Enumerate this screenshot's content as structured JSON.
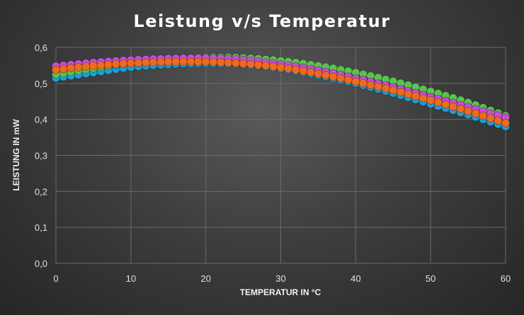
{
  "chart_data": {
    "type": "scatter",
    "title": "Leistung v/s Temperatur",
    "xlabel": "TEMPERATUR IN °C",
    "ylabel": "LEISTUNG IN mW",
    "xlim": [
      0,
      60
    ],
    "ylim": [
      0,
      0.6
    ],
    "x_ticks": [
      "0",
      "10",
      "20",
      "30",
      "40",
      "50",
      "60"
    ],
    "y_ticks": [
      "0,0",
      "0,1",
      "0,2",
      "0,3",
      "0,4",
      "0,5",
      "0,6"
    ],
    "grid": true,
    "legend": "none",
    "series": [
      {
        "color": "#1e9fd6",
        "x": [
          0,
          5,
          10,
          15,
          20,
          25,
          30,
          35,
          40,
          45,
          50,
          55,
          60
        ],
        "values": [
          0.515,
          0.53,
          0.545,
          0.553,
          0.556,
          0.553,
          0.541,
          0.523,
          0.5,
          0.473,
          0.443,
          0.413,
          0.38
        ]
      },
      {
        "color": "#5cc24f",
        "x": [
          0,
          5,
          10,
          15,
          20,
          25,
          30,
          35,
          40,
          45,
          50,
          55,
          60
        ],
        "values": [
          0.525,
          0.542,
          0.558,
          0.567,
          0.572,
          0.571,
          0.563,
          0.549,
          0.53,
          0.506,
          0.478,
          0.447,
          0.41
        ]
      },
      {
        "color": "#c64fd8",
        "x": [
          0,
          5,
          10,
          15,
          20,
          25,
          30,
          35,
          40,
          45,
          50,
          55,
          60
        ],
        "values": [
          0.548,
          0.558,
          0.565,
          0.569,
          0.57,
          0.565,
          0.553,
          0.536,
          0.514,
          0.489,
          0.462,
          0.434,
          0.405
        ]
      },
      {
        "color": "#ef6a1e",
        "x": [
          0,
          5,
          10,
          15,
          20,
          25,
          30,
          35,
          40,
          45,
          50,
          55,
          60
        ],
        "values": [
          0.538,
          0.549,
          0.556,
          0.56,
          0.56,
          0.555,
          0.544,
          0.527,
          0.505,
          0.481,
          0.453,
          0.423,
          0.39
        ]
      }
    ]
  }
}
